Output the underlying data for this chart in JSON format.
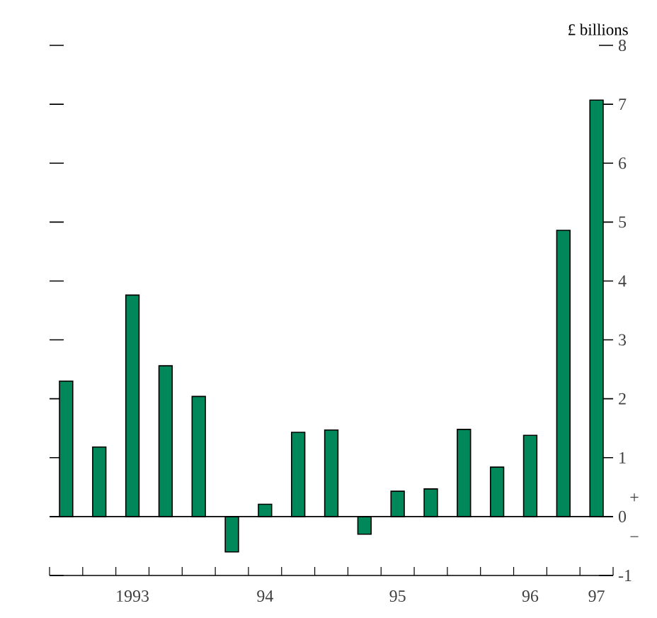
{
  "chart_data": {
    "type": "bar",
    "ylabel": "£ billions",
    "categories": [
      null,
      null,
      "1993",
      null,
      null,
      null,
      "94",
      null,
      null,
      null,
      "95",
      null,
      null,
      null,
      "96",
      null,
      "97"
    ],
    "values": [
      2.3,
      1.18,
      3.76,
      2.56,
      2.04,
      -0.6,
      0.21,
      1.43,
      1.47,
      -0.3,
      0.43,
      0.47,
      1.48,
      0.84,
      1.38,
      4.86,
      7.07
    ],
    "color": "#00875a",
    "ylim": [
      -1,
      8
    ],
    "yticks": [
      -1,
      0,
      1,
      2,
      3,
      4,
      5,
      6,
      7,
      8
    ],
    "ref_lines": [
      {
        "axis": "y",
        "value": 0
      }
    ],
    "annotations": [
      "+",
      "−"
    ],
    "grid": false
  }
}
